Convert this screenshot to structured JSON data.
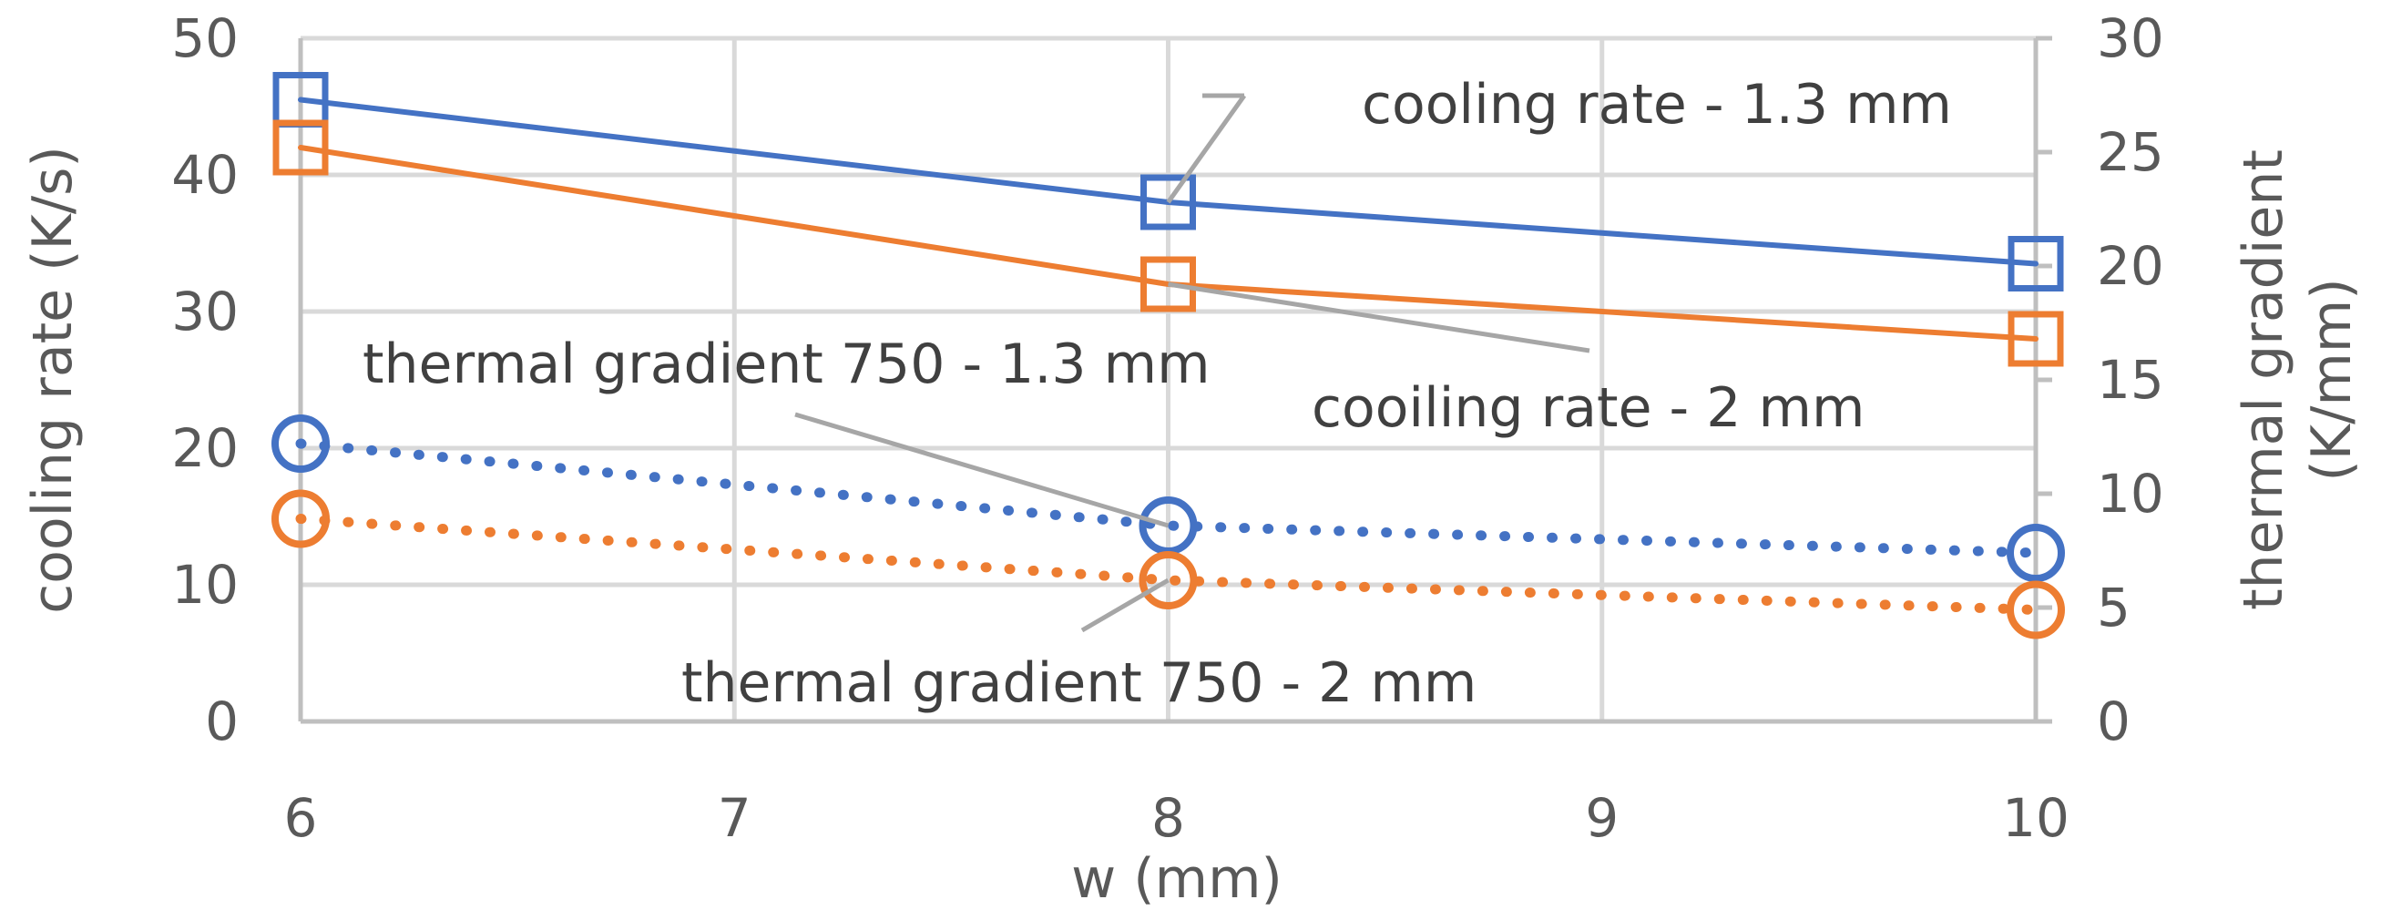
{
  "chart_data": {
    "type": "line",
    "x": [
      6,
      8,
      10
    ],
    "xlabel": "w (mm)",
    "ylabel_left": "cooling rate (K/s)",
    "ylabel_right": "thermal gradient (K/mm)",
    "xlim": [
      6,
      10
    ],
    "ylim_left": [
      0,
      50
    ],
    "ylim_right": [
      0,
      30
    ],
    "x_ticks": [
      6,
      7,
      8,
      9,
      10
    ],
    "y_ticks_left": [
      0,
      10,
      20,
      30,
      40,
      50
    ],
    "y_ticks_right": [
      0,
      5,
      10,
      15,
      20,
      25,
      30
    ],
    "grid": true,
    "series": [
      {
        "values": [
          45.5,
          38,
          33.5
        ],
        "axis": "left",
        "color": "#4472C4",
        "marker": "square",
        "line": "solid"
      },
      {
        "values": [
          42,
          32,
          28
        ],
        "axis": "left",
        "color": "#ED7D31",
        "marker": "square",
        "line": "solid"
      },
      {
        "values": [
          12.2,
          8.6,
          7.4
        ],
        "axis": "right",
        "color": "#4472C4",
        "marker": "circle",
        "line": "dotted"
      },
      {
        "values": [
          8.9,
          6.2,
          4.9
        ],
        "axis": "right",
        "color": "#ED7D31",
        "marker": "circle",
        "line": "dotted"
      }
    ],
    "annotations": [
      {
        "text": "cooling rate - 1.3 mm",
        "series_index": 0,
        "point_index": 1
      },
      {
        "text": "cooiling rate - 2 mm",
        "series_index": 1,
        "point_index": 1
      },
      {
        "text": "thermal gradient  750 - 1.3 mm",
        "series_index": 2,
        "point_index": 1
      },
      {
        "text": "thermal gradient 750 - 2 mm",
        "series_index": 3,
        "point_index": 1
      }
    ]
  }
}
